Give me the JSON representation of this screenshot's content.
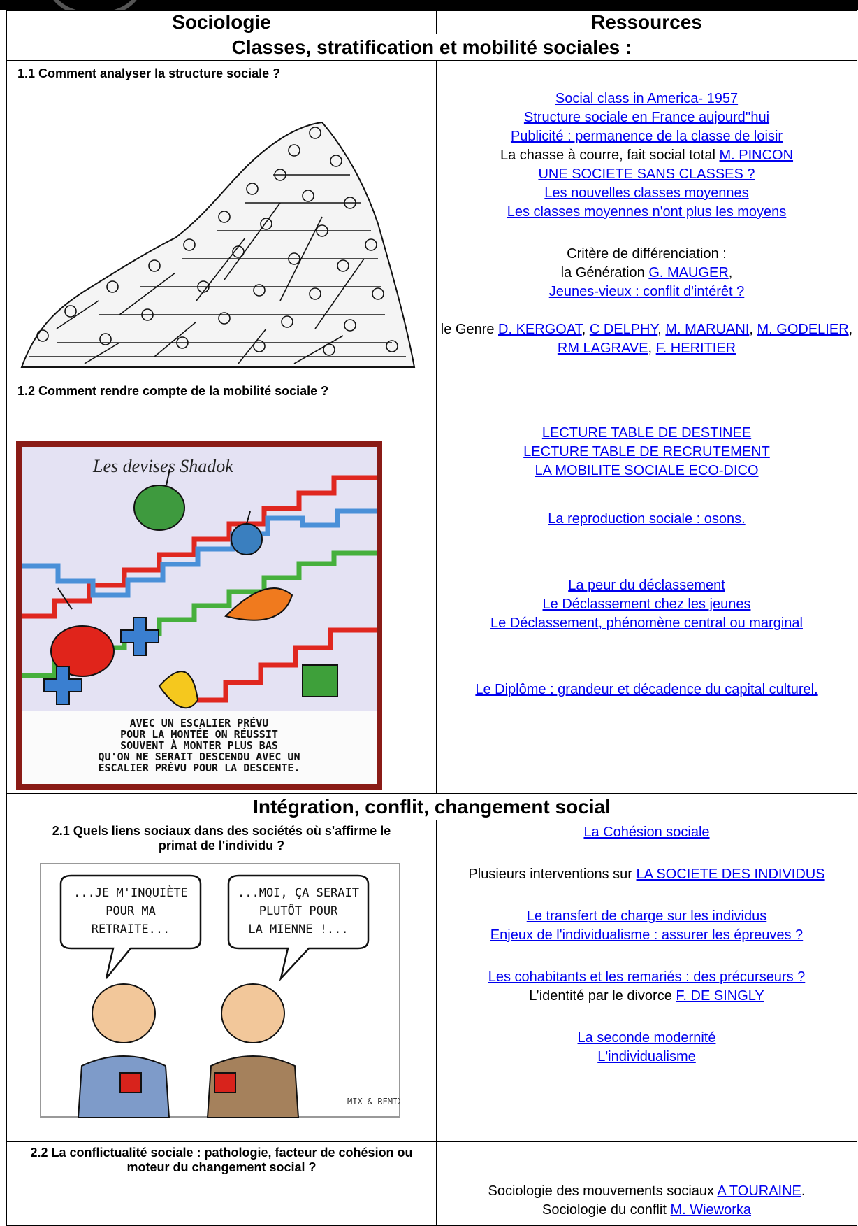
{
  "header": {
    "columns": [
      "Sociologie",
      "Ressources"
    ]
  },
  "sections": [
    {
      "title": "Classes, stratification et mobilité sociales :",
      "rows": [
        {
          "question": "1.1 Comment analyser la structure sociale ?",
          "resources": [
            [
              "Social class in America- 1957"
            ],
            [
              "Structure sociale en France aujourd''hui"
            ],
            [
              "Publicité : permanence de la classe de loisir"
            ],
            [
              "La chasse à courre, fait social total ",
              "M. PINCON"
            ],
            [
              "UNE SOCIETE SANS CLASSES ?"
            ],
            [
              "Les nouvelles classes moyennes"
            ],
            [
              "Les classes moyennes n'ont plus les moyens"
            ],
            [
              "Critère de différenciation :"
            ],
            [
              "la Génération ",
              "G. MAUGER",
              ","
            ],
            [
              "Jeunes-vieux : conflit d'intérêt ?"
            ],
            [
              "le Genre ",
              "D. KERGOAT",
              ", ",
              "C DELPHY",
              ", ",
              "M. MARUANI",
              ", ",
              "M. GODELIER",
              ", ",
              "RM LAGRAVE",
              ", ",
              "F. HERITIER"
            ]
          ]
        },
        {
          "question": "1.2 Comment rendre compte de la mobilité sociale ?",
          "image_text": [
            "Les devises Shadok",
            "AVEC UN ESCALIER PRÉVU",
            "POUR LA MONTÉE ON RÉUSSIT",
            "SOUVENT À MONTER PLUS BAS",
            "QU'ON NE SERAIT DESCENDU AVEC UN",
            "ESCALIER PRÉVU POUR LA DESCENTE."
          ],
          "resources": [
            [
              "LECTURE TABLE DE DESTINEE"
            ],
            [
              "LECTURE TABLE DE RECRUTEMENT"
            ],
            [
              "LA MOBILITE SOCIALE ECO-DICO"
            ],
            [
              "La reproduction sociale : osons."
            ],
            [
              "La peur du déclassement"
            ],
            [
              "Le Déclassement chez les jeunes"
            ],
            [
              "Le Déclassement, phénomène central ou marginal"
            ],
            [
              "Le Diplôme : grandeur et décadence du capital culturel."
            ]
          ]
        }
      ]
    },
    {
      "title": "Intégration, conflit, changement social",
      "rows": [
        {
          "question": "2.1 Quels liens sociaux dans des sociétés où s'affirme le primat de l'individu ?",
          "image_text": [
            "...JE M'INQUIÈTE",
            "POUR MA",
            "RETRAITE...",
            "...MOI, ÇA SERAIT",
            "PLUTÔT POUR",
            "LA MIENNE !...",
            "MIX & REMIX"
          ],
          "resources": [
            [
              "La Cohésion sociale"
            ],
            [
              "Plusieurs interventions sur ",
              "LA SOCIETE DES INDIVIDUS"
            ],
            [
              "Le transfert de charge sur les individus"
            ],
            [
              "Enjeux de l'individualisme : assurer les épreuves ?"
            ],
            [
              "Les cohabitants et les remariés : des précurseurs ?"
            ],
            [
              "L’identité par le divorce ",
              "F. DE SINGLY"
            ],
            [
              "La seconde modernité"
            ],
            [
              "L'individualisme"
            ]
          ]
        },
        {
          "question": "2.2 La conflictualité sociale : pathologie, facteur de cohésion ou moteur du changement social ?",
          "resources": [
            [
              "Sociologie des mouvements sociaux ",
              "A TOURAINE",
              "."
            ],
            [
              "Sociologie du conflit ",
              "M. Wieworka"
            ]
          ]
        }
      ]
    }
  ]
}
